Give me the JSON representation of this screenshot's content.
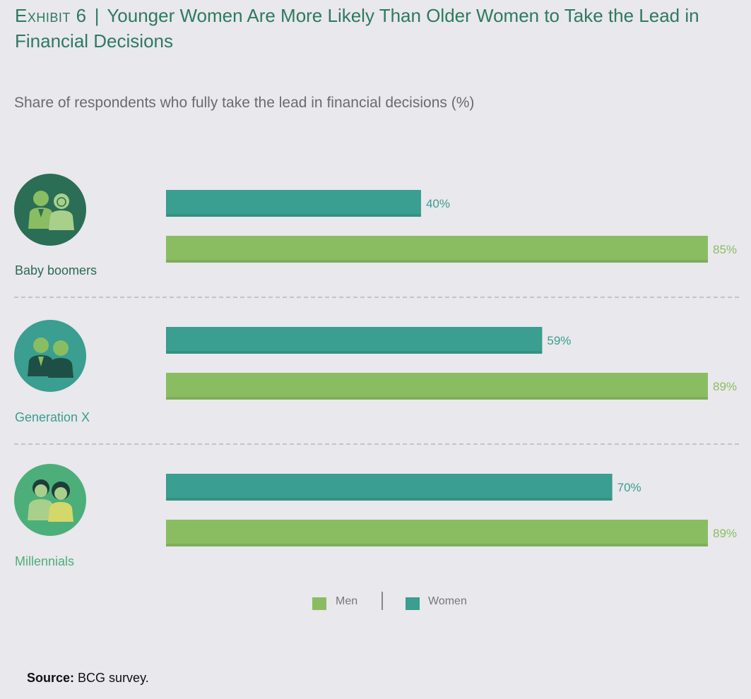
{
  "header": {
    "exhibit": "Exhibit 6",
    "separator": "|",
    "title": "Younger Women Are More Likely Than Older Women to Take the Lead in Financial Decisions"
  },
  "subtitle": "Share of respondents who fully take the lead in financial decisions (%)",
  "colors": {
    "men": "#8abd62",
    "women": "#3a9e90",
    "boomers_label": "#2a6a52",
    "genx_label": "#3a9e90",
    "millennials_label": "#4caf7a",
    "boomers_circle": "#2a6e55",
    "genx_circle": "#3a9e90",
    "millennials_circle": "#4caf7a"
  },
  "chart_data": {
    "type": "bar",
    "orientation": "horizontal",
    "title": "Younger Women Are More Likely Than Older Women to Take the Lead in Financial Decisions",
    "ylabel": "Share of respondents who fully take the lead in financial decisions (%)",
    "categories": [
      "Baby boomers",
      "Generation X",
      "Millennials"
    ],
    "xlim": [
      0,
      100
    ],
    "series": [
      {
        "name": "Women",
        "values": [
          40,
          59,
          70
        ],
        "labels": [
          "40%",
          "59%",
          "70%"
        ]
      },
      {
        "name": "Men",
        "values": [
          85,
          89,
          89
        ],
        "labels": [
          "85%",
          "89%",
          "89%"
        ]
      }
    ],
    "legend": [
      "Men",
      "Women"
    ],
    "legend_position": "bottom-center"
  },
  "legend": {
    "men": "Men",
    "women": "Women"
  },
  "icons": [
    "boomers-couple-icon",
    "genx-couple-icon",
    "millennials-couple-icon"
  ],
  "source": {
    "label": "Source:",
    "text": "BCG survey."
  }
}
